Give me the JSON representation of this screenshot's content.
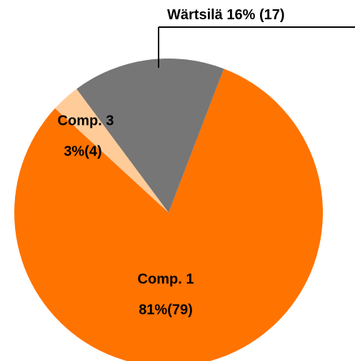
{
  "chart_data": {
    "type": "pie",
    "categories": [
      "Comp. 1",
      "Comp. 3",
      "Wärtsilä"
    ],
    "values": [
      81,
      3,
      16
    ],
    "value_labels": [
      "81%(79)",
      "3%(4)",
      "16% (17)"
    ],
    "colors": [
      "#ff7300",
      "#ffcc99",
      "#767676"
    ]
  }
}
